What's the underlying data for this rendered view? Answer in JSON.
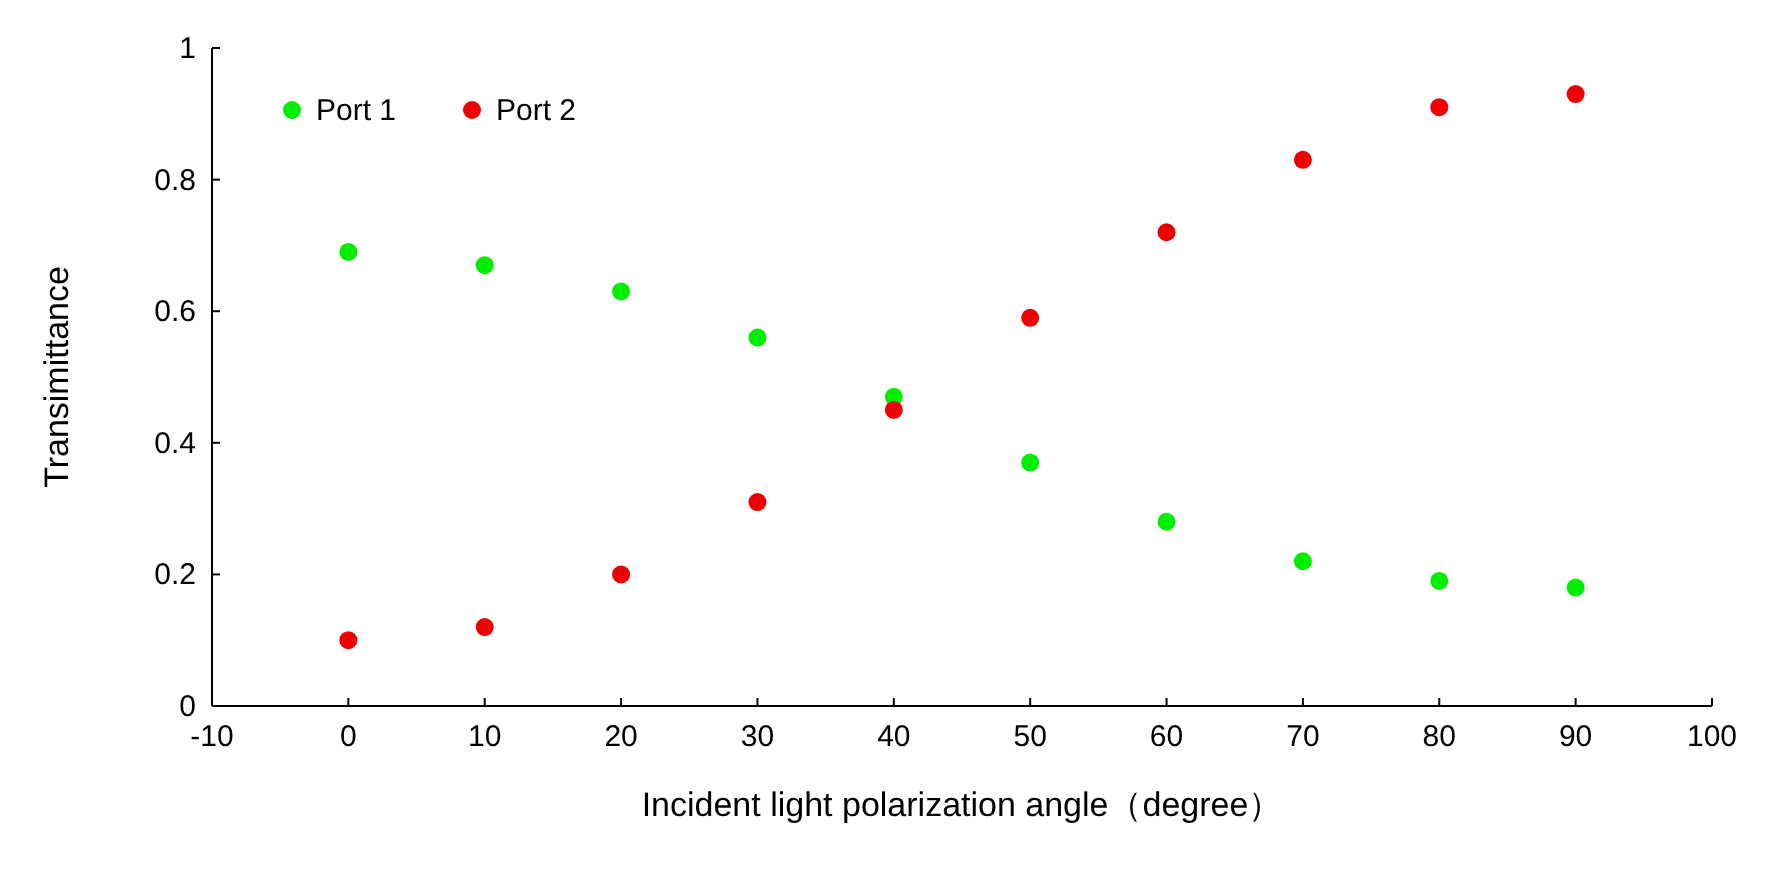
{
  "chart_data": {
    "type": "scatter",
    "xlabel": "Incident light polarization angle（degree）",
    "ylabel": "Transimittance",
    "x": [
      0,
      10,
      20,
      30,
      40,
      50,
      60,
      70,
      80,
      90
    ],
    "series": [
      {
        "name": "Port 1",
        "color": "#00ee00",
        "values": [
          0.69,
          0.67,
          0.63,
          0.56,
          0.47,
          0.37,
          0.28,
          0.22,
          0.19,
          0.18
        ]
      },
      {
        "name": "Port 2",
        "color": "#ee0000",
        "values": [
          0.1,
          0.12,
          0.2,
          0.31,
          0.45,
          0.59,
          0.72,
          0.83,
          0.91,
          0.93
        ]
      }
    ],
    "xlim": [
      -10,
      100
    ],
    "xticks": [
      -10,
      0,
      10,
      20,
      30,
      40,
      50,
      60,
      70,
      80,
      90,
      100
    ],
    "ylim": [
      0,
      1
    ],
    "yticks": [
      0,
      0.2,
      0.4,
      0.6,
      0.8,
      1
    ],
    "grid": false,
    "legend": "top left",
    "marker": "circle"
  }
}
